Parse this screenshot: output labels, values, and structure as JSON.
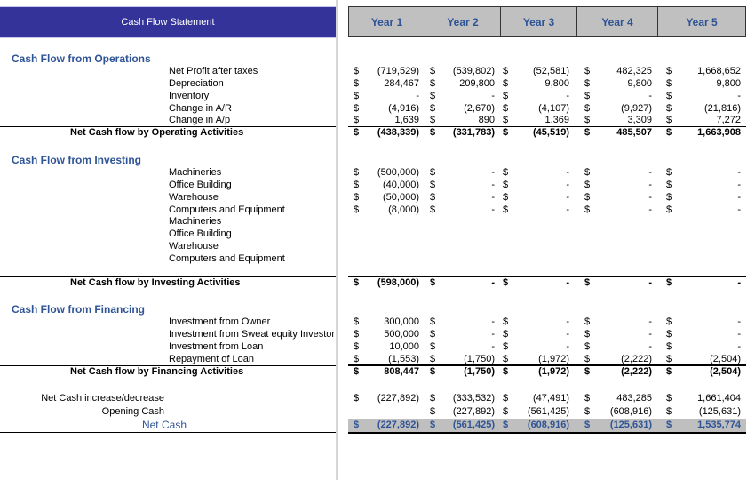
{
  "header": {
    "title": "Cash Flow Statement",
    "years": [
      "Year 1",
      "Year 2",
      "Year 3",
      "Year 4",
      "Year 5"
    ]
  },
  "rows": [
    {
      "type": "section",
      "label": "Cash Flow from Operations",
      "values": []
    },
    {
      "type": "item",
      "label": "Net Profit after taxes",
      "values": [
        [
          "$",
          "(719,529)"
        ],
        [
          "$",
          "(539,802)"
        ],
        [
          "$",
          "(52,581)"
        ],
        [
          "$",
          "482,325"
        ],
        [
          "$",
          "1,668,652"
        ]
      ]
    },
    {
      "type": "item",
      "label": "Depreciation",
      "values": [
        [
          "$",
          "284,467"
        ],
        [
          "$",
          "209,800"
        ],
        [
          "$",
          "9,800"
        ],
        [
          "$",
          "9,800"
        ],
        [
          "$",
          "9,800"
        ]
      ]
    },
    {
      "type": "item",
      "label": "Inventory",
      "values": [
        [
          "$",
          "-"
        ],
        [
          "$",
          "-"
        ],
        [
          "$",
          "-"
        ],
        [
          "$",
          "-"
        ],
        [
          "$",
          "-"
        ]
      ]
    },
    {
      "type": "item",
      "label": "Change in A/R",
      "values": [
        [
          "$",
          "(4,916)"
        ],
        [
          "$",
          "(2,670)"
        ],
        [
          "$",
          "(4,107)"
        ],
        [
          "$",
          "(9,927)"
        ],
        [
          "$",
          "(21,816)"
        ]
      ]
    },
    {
      "type": "item",
      "label": "Change in A/p",
      "values": [
        [
          "$",
          "1,639"
        ],
        [
          "$",
          "890"
        ],
        [
          "$",
          "1,369"
        ],
        [
          "$",
          "3,309"
        ],
        [
          "$",
          "7,272"
        ]
      ]
    },
    {
      "type": "total",
      "label": "Net Cash flow by Operating Activities",
      "values": [
        [
          "$",
          "(438,339)"
        ],
        [
          "$",
          "(331,783)"
        ],
        [
          "$",
          "(45,519)"
        ],
        [
          "$",
          "485,507"
        ],
        [
          "$",
          "1,663,908"
        ]
      ]
    },
    {
      "type": "section",
      "label": "Cash Flow from Investing",
      "values": []
    },
    {
      "type": "item",
      "label": "Machineries",
      "values": [
        [
          "$",
          "(500,000)"
        ],
        [
          "$",
          "-"
        ],
        [
          "$",
          "-"
        ],
        [
          "$",
          "-"
        ],
        [
          "$",
          "-"
        ]
      ]
    },
    {
      "type": "item",
      "label": "Office Building",
      "values": [
        [
          "$",
          "(40,000)"
        ],
        [
          "$",
          "-"
        ],
        [
          "$",
          "-"
        ],
        [
          "$",
          "-"
        ],
        [
          "$",
          "-"
        ]
      ]
    },
    {
      "type": "item",
      "label": "Warehouse",
      "values": [
        [
          "$",
          "(50,000)"
        ],
        [
          "$",
          "-"
        ],
        [
          "$",
          "-"
        ],
        [
          "$",
          "-"
        ],
        [
          "$",
          "-"
        ]
      ]
    },
    {
      "type": "item",
      "label": "Computers and Equipment",
      "values": [
        [
          "$",
          "(8,000)"
        ],
        [
          "$",
          "-"
        ],
        [
          "$",
          "-"
        ],
        [
          "$",
          "-"
        ],
        [
          "$",
          "-"
        ]
      ]
    },
    {
      "type": "item",
      "label": "Machineries",
      "values": []
    },
    {
      "type": "item",
      "label": "Office Building",
      "values": []
    },
    {
      "type": "item",
      "label": "Warehouse",
      "values": []
    },
    {
      "type": "item",
      "label": "Computers and Equipment",
      "values": []
    },
    {
      "type": "total",
      "label": "Net Cash flow by Investing Activities",
      "values": [
        [
          "$",
          "(598,000)"
        ],
        [
          "$",
          "-"
        ],
        [
          "$",
          "-"
        ],
        [
          "$",
          "-"
        ],
        [
          "$",
          "-"
        ]
      ]
    },
    {
      "type": "section",
      "label": "Cash Flow from Financing",
      "values": []
    },
    {
      "type": "item",
      "label": "Investment from Owner",
      "values": [
        [
          "$",
          "300,000"
        ],
        [
          "$",
          "-"
        ],
        [
          "$",
          "-"
        ],
        [
          "$",
          "-"
        ],
        [
          "$",
          "-"
        ]
      ]
    },
    {
      "type": "item",
      "label": "Investment from Sweat equity Investor",
      "values": [
        [
          "$",
          "500,000"
        ],
        [
          "$",
          "-"
        ],
        [
          "$",
          "-"
        ],
        [
          "$",
          "-"
        ],
        [
          "$",
          "-"
        ]
      ]
    },
    {
      "type": "item",
      "label": "Investment from Loan",
      "values": [
        [
          "$",
          "10,000"
        ],
        [
          "$",
          "-"
        ],
        [
          "$",
          "-"
        ],
        [
          "$",
          "-"
        ],
        [
          "$",
          "-"
        ]
      ]
    },
    {
      "type": "item",
      "label": "Repayment of Loan",
      "values": [
        [
          "$",
          "(1,553)"
        ],
        [
          "$",
          "(1,750)"
        ],
        [
          "$",
          "(1,972)"
        ],
        [
          "$",
          "(2,222)"
        ],
        [
          "$",
          "(2,504)"
        ]
      ]
    },
    {
      "type": "total",
      "label": "Net Cash flow by Financing Activities",
      "values": [
        [
          "$",
          "808,447"
        ],
        [
          "$",
          "(1,750)"
        ],
        [
          "$",
          "(1,972)"
        ],
        [
          "$",
          "(2,222)"
        ],
        [
          "$",
          "(2,504)"
        ]
      ]
    },
    {
      "type": "plain",
      "label": "Net Cash increase/decrease",
      "values": [
        [
          "$",
          "(227,892)"
        ],
        [
          "$",
          "(333,532)"
        ],
        [
          "$",
          "(47,491)"
        ],
        [
          "$",
          "483,285"
        ],
        [
          "$",
          "1,661,404"
        ]
      ]
    },
    {
      "type": "plain",
      "label": "Opening Cash",
      "values": [
        [
          "",
          ""
        ],
        [
          "$",
          "(227,892)"
        ],
        [
          "$",
          "(561,425)"
        ],
        [
          "$",
          "(608,916)"
        ],
        [
          "$",
          "(125,631)"
        ]
      ]
    },
    {
      "type": "netcash",
      "label": "Net Cash",
      "values": [
        [
          "$",
          "(227,892)"
        ],
        [
          "$",
          "(561,425)"
        ],
        [
          "$",
          "(608,916)"
        ],
        [
          "$",
          "(125,631)"
        ],
        [
          "$",
          "1,535,774"
        ]
      ]
    }
  ]
}
